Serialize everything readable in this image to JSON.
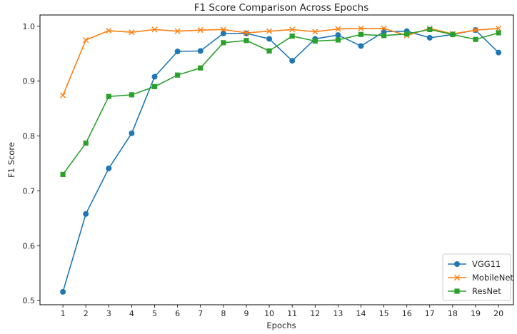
{
  "chart_data": {
    "type": "line",
    "title": "F1 Score Comparison Across Epochs",
    "xlabel": "Epochs",
    "ylabel": "F1 Score",
    "x": [
      1,
      2,
      3,
      4,
      5,
      6,
      7,
      8,
      9,
      10,
      11,
      12,
      13,
      14,
      15,
      16,
      17,
      18,
      19,
      20
    ],
    "x_tick_labels": [
      "1",
      "2",
      "3",
      "4",
      "5",
      "6",
      "7",
      "8",
      "9",
      "10",
      "11",
      "12",
      "13",
      "14",
      "15",
      "16",
      "17",
      "18",
      "19",
      "20"
    ],
    "y_ticks": [
      0.5,
      0.6,
      0.7,
      0.8,
      0.9,
      1.0
    ],
    "y_tick_labels": [
      "0.5",
      "0.6",
      "0.7",
      "0.8",
      "0.9",
      "1.0"
    ],
    "xlim": [
      0.0,
      20.65
    ],
    "ylim": [
      0.4925,
      1.0205
    ],
    "grid": false,
    "legend_position": "lower right",
    "series": [
      {
        "name": "VGG11",
        "color": "#1f77b4",
        "marker": "circle",
        "values": [
          0.516,
          0.658,
          0.741,
          0.805,
          0.908,
          0.954,
          0.955,
          0.987,
          0.987,
          0.977,
          0.937,
          0.977,
          0.984,
          0.964,
          0.99,
          0.991,
          0.979,
          0.985,
          0.993,
          0.952
        ]
      },
      {
        "name": "MobileNet",
        "color": "#ff7f0e",
        "marker": "x",
        "values": [
          0.874,
          0.975,
          0.992,
          0.989,
          0.994,
          0.991,
          0.993,
          0.994,
          0.988,
          0.991,
          0.994,
          0.99,
          0.995,
          0.996,
          0.996,
          0.983,
          0.996,
          0.986,
          0.993,
          0.996
        ]
      },
      {
        "name": "ResNet",
        "color": "#2ca02c",
        "marker": "square",
        "values": [
          0.73,
          0.787,
          0.872,
          0.875,
          0.89,
          0.911,
          0.924,
          0.97,
          0.974,
          0.955,
          0.982,
          0.973,
          0.975,
          0.985,
          0.983,
          0.986,
          0.994,
          0.985,
          0.976,
          0.988
        ]
      }
    ]
  }
}
